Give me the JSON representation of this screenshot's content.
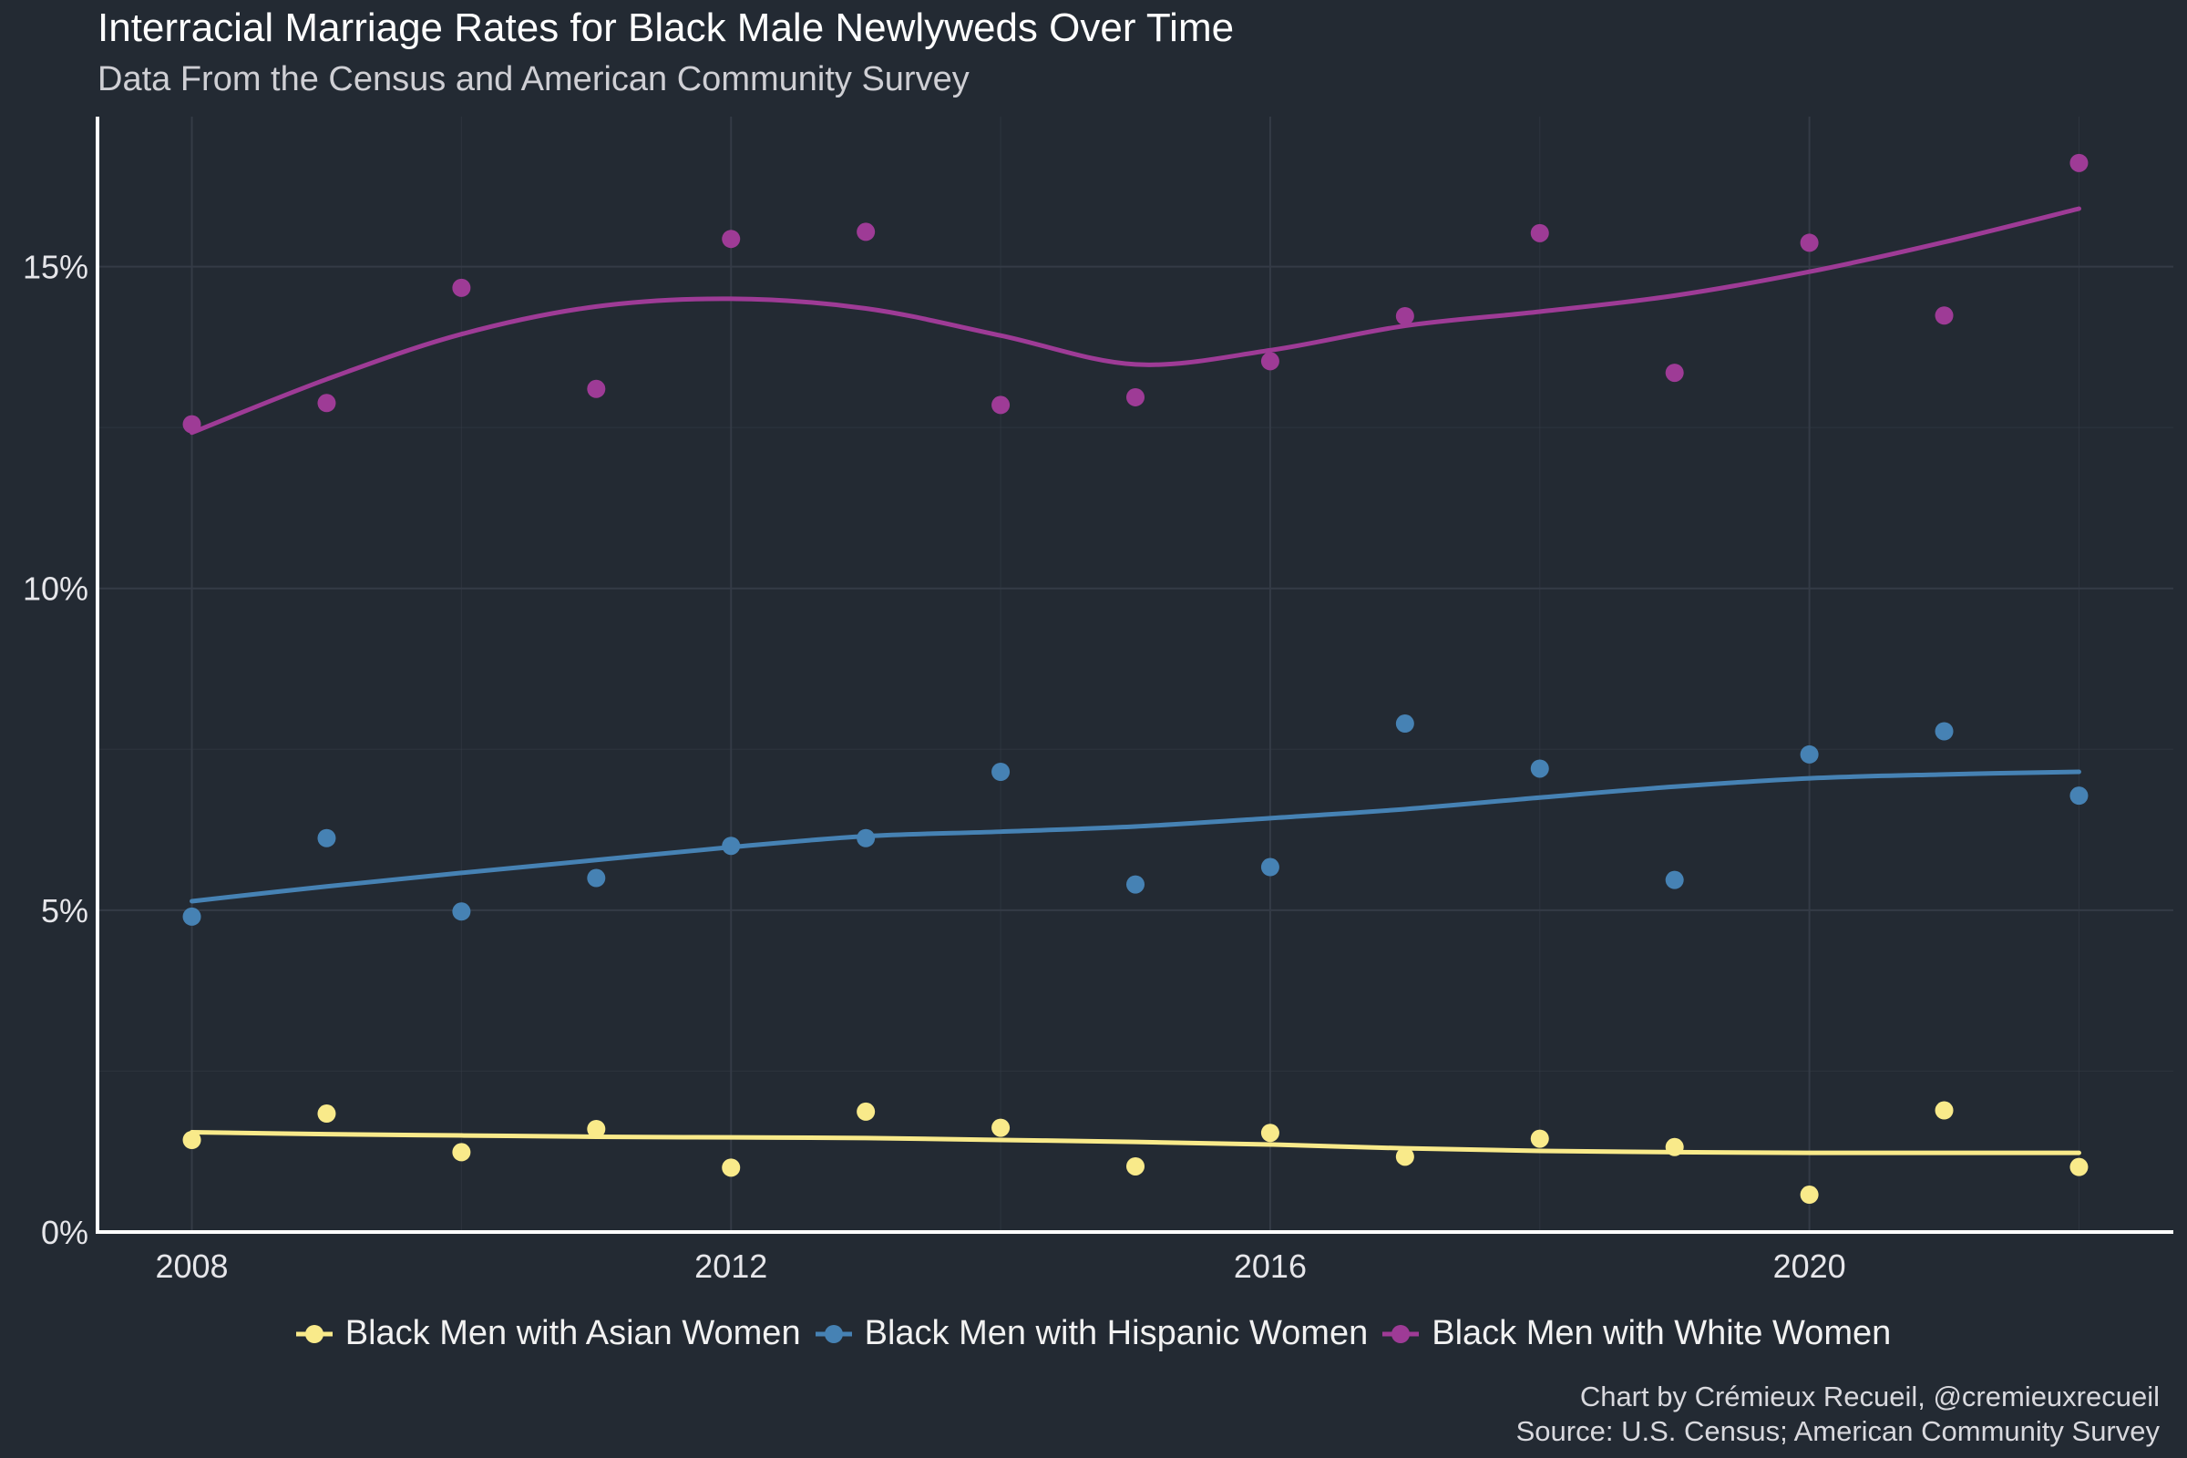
{
  "title": "Interracial Marriage Rates for Black Male Newlyweds Over Time",
  "subtitle": "Data From the Census and American Community Survey",
  "caption": {
    "line1": "Chart by Crémieux Recueil, @cremieuxrecueil",
    "line2": "Source: U.S. Census; American Community Survey"
  },
  "colors": {
    "background": "#232a33",
    "grid": "#343b46",
    "axis": "#ffffff",
    "tick_text": "#e6e6ea"
  },
  "chart_data": {
    "type": "scatter",
    "xlim": [
      2007.3,
      2022.7
    ],
    "ylim": [
      0,
      0.1733
    ],
    "x_ticks": [
      2008,
      2012,
      2016,
      2020
    ],
    "x_tick_labels": [
      "2008",
      "2012",
      "2016",
      "2020"
    ],
    "y_ticks": [
      0,
      0.05,
      0.1,
      0.15
    ],
    "y_tick_labels": [
      "0%",
      "5%",
      "10%",
      "15%"
    ],
    "grid": true,
    "legend_position": "bottom",
    "x": [
      2008,
      2009,
      2010,
      2011,
      2012,
      2013,
      2014,
      2015,
      2016,
      2017,
      2018,
      2019,
      2020,
      2021,
      2022
    ],
    "series": [
      {
        "name": "Black Men with Asian Women",
        "color": "#f9ea8a",
        "values": [
          0.0143,
          0.0184,
          0.0124,
          0.016,
          0.01,
          0.0187,
          0.0162,
          0.0102,
          0.0154,
          0.0117,
          0.0145,
          0.0132,
          0.0058,
          0.0189,
          0.0101
        ],
        "trend": [
          0.0155,
          0.0152,
          0.015,
          0.0148,
          0.0147,
          0.0146,
          0.0143,
          0.014,
          0.0136,
          0.013,
          0.0126,
          0.0124,
          0.0123,
          0.0123,
          0.0123
        ]
      },
      {
        "name": "Black Men with Hispanic Women",
        "color": "#4682b4",
        "values": [
          0.049,
          0.0612,
          0.0498,
          0.055,
          0.06,
          0.0612,
          0.0715,
          0.054,
          0.0567,
          0.079,
          0.072,
          0.0547,
          0.0742,
          0.0778,
          0.0678
        ],
        "trend": [
          0.0514,
          0.0537,
          0.0558,
          0.0578,
          0.0598,
          0.0615,
          0.0622,
          0.063,
          0.0643,
          0.0657,
          0.0675,
          0.0692,
          0.0705,
          0.0711,
          0.0715
        ]
      },
      {
        "name": "Black Men with White Women",
        "color": "#9e3b96",
        "values": [
          0.1255,
          0.1288,
          0.1467,
          0.131,
          0.1543,
          0.1554,
          0.1285,
          0.1297,
          0.1353,
          0.1423,
          0.1552,
          0.1335,
          0.1537,
          0.1424,
          0.1661
        ],
        "trend": [
          0.1242,
          0.1325,
          0.1395,
          0.1438,
          0.145,
          0.1435,
          0.1393,
          0.1348,
          0.137,
          0.1408,
          0.143,
          0.1455,
          0.1492,
          0.1538,
          0.159
        ]
      }
    ]
  }
}
